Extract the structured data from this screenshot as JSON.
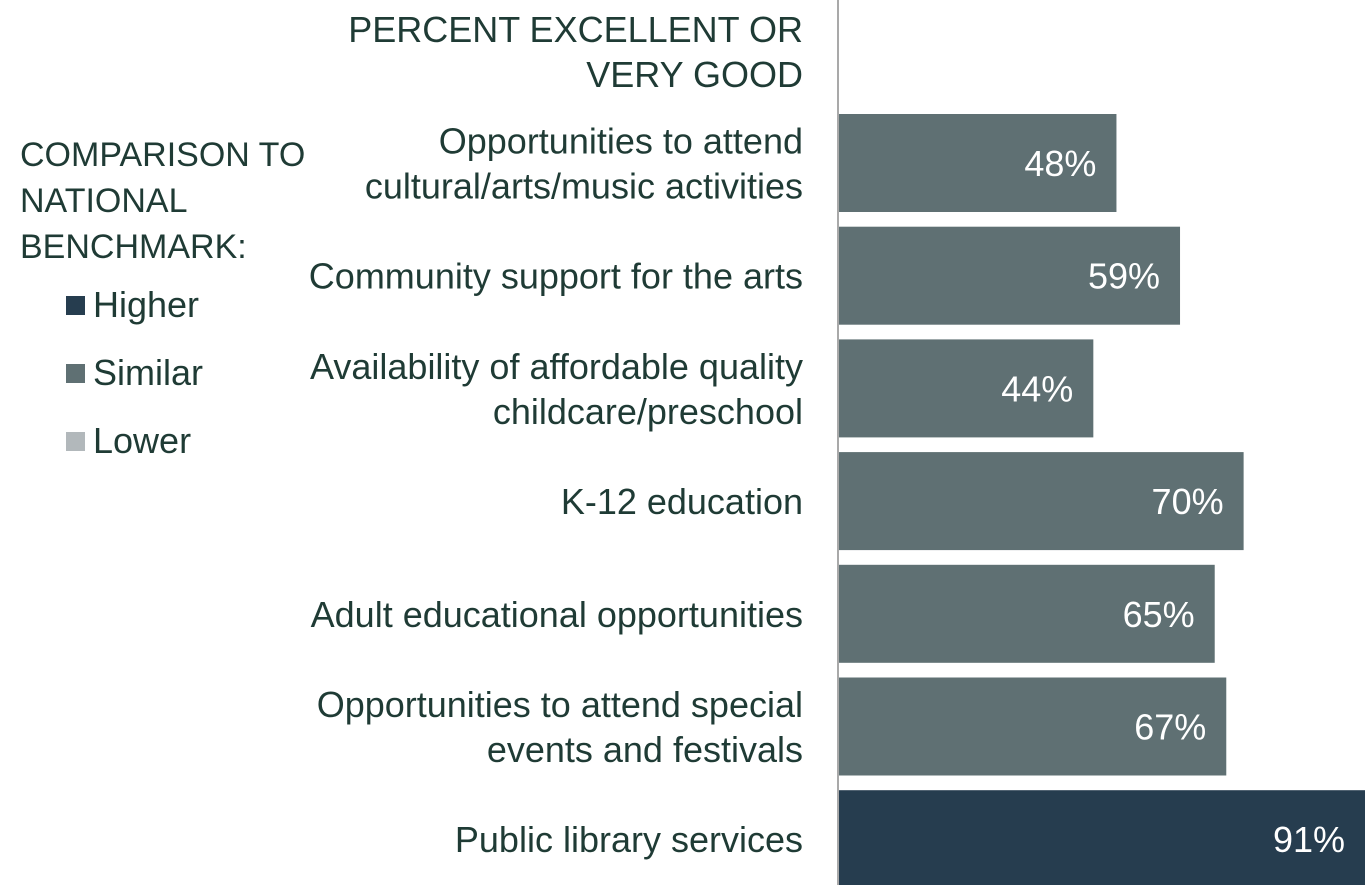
{
  "chart_data": {
    "type": "bar",
    "orientation": "horizontal",
    "title": "PERCENT EXCELLENT OR VERY GOOD",
    "categories": [
      "Opportunities to attend cultural/arts/music activities",
      "Community support for the arts",
      "Availability of affordable quality childcare/preschool",
      "K-12 education",
      "Adult educational opportunities",
      "Opportunities to attend special events and festivals",
      "Public library services"
    ],
    "values": [
      48,
      59,
      44,
      70,
      65,
      67,
      91
    ],
    "data_labels": [
      "48%",
      "59%",
      "44%",
      "70%",
      "65%",
      "67%",
      "91%"
    ],
    "comparison": [
      "Similar",
      "Similar",
      "Similar",
      "Similar",
      "Similar",
      "Similar",
      "Higher"
    ],
    "xlim": [
      0,
      91
    ],
    "grid": false,
    "legend": {
      "title": "COMPARISON TO NATIONAL BENCHMARK:",
      "placement": "left",
      "items": [
        {
          "label": "Higher",
          "color": "#263d4f"
        },
        {
          "label": "Similar",
          "color": "#5f7073"
        },
        {
          "label": "Lower",
          "color": "#b2b8bb"
        }
      ]
    }
  },
  "colors": {
    "text": "#1f3b35",
    "bar_label": "#ffffff",
    "axis_line": "#a9a9a9"
  }
}
